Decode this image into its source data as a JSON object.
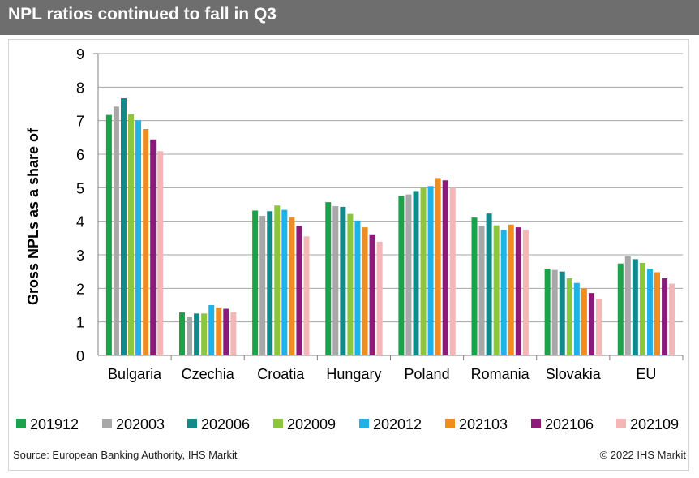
{
  "header": {
    "title": "NPL ratios continued to fall in Q3"
  },
  "footer": {
    "source": "Source: European Banking Authority, IHS Markit",
    "copyright": "© 2022 IHS Markit"
  },
  "chart_data": {
    "type": "bar",
    "title": "NPL ratios continued to fall in Q3",
    "ylabel": "Gross NPLs as a share of",
    "xlabel": "",
    "ylim": [
      0,
      9
    ],
    "yticks": [
      0,
      1,
      2,
      3,
      4,
      5,
      6,
      7,
      8,
      9
    ],
    "grid": true,
    "legend_position": "bottom",
    "categories": [
      "Bulgaria",
      "Czechia",
      "Croatia",
      "Hungary",
      "Poland",
      "Romania",
      "Slovakia",
      "EU"
    ],
    "series": [
      {
        "name": "201912",
        "color": "#1aa34a",
        "values": [
          7.17,
          1.28,
          4.32,
          4.57,
          4.76,
          4.11,
          2.59,
          2.74
        ]
      },
      {
        "name": "202003",
        "color": "#a8a8a8",
        "values": [
          7.42,
          1.16,
          4.16,
          4.45,
          4.8,
          3.87,
          2.55,
          2.96
        ]
      },
      {
        "name": "202006",
        "color": "#138a8a",
        "values": [
          7.67,
          1.25,
          4.3,
          4.43,
          4.9,
          4.23,
          2.5,
          2.87
        ]
      },
      {
        "name": "202009",
        "color": "#8cc63f",
        "values": [
          7.19,
          1.25,
          4.47,
          4.22,
          5.01,
          3.88,
          2.3,
          2.76
        ]
      },
      {
        "name": "202012",
        "color": "#1eb2e8",
        "values": [
          7.01,
          1.5,
          4.34,
          4.02,
          5.05,
          3.74,
          2.16,
          2.58
        ]
      },
      {
        "name": "202103",
        "color": "#f28c1e",
        "values": [
          6.75,
          1.43,
          4.11,
          3.82,
          5.29,
          3.9,
          2.0,
          2.48
        ]
      },
      {
        "name": "202106",
        "color": "#8b1a7a",
        "values": [
          6.44,
          1.39,
          3.86,
          3.61,
          5.22,
          3.82,
          1.86,
          2.3
        ]
      },
      {
        "name": "202109",
        "color": "#f4b6b6",
        "values": [
          6.09,
          1.29,
          3.55,
          3.39,
          5.0,
          3.75,
          1.69,
          2.14
        ]
      }
    ]
  }
}
